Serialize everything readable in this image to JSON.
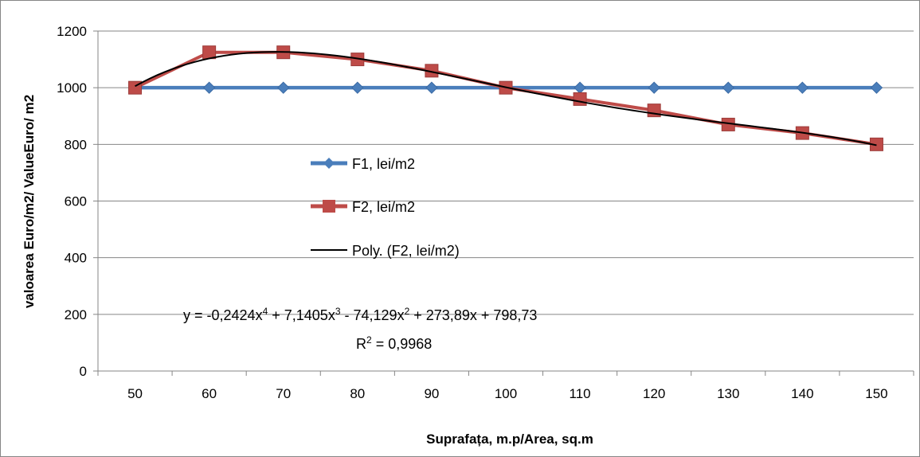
{
  "chart_data": {
    "type": "line",
    "x": [
      50,
      60,
      70,
      80,
      90,
      100,
      110,
      120,
      130,
      140,
      150
    ],
    "series": [
      {
        "name": "F1, lei/m2",
        "values": [
          1000,
          1000,
          1000,
          1000,
          1000,
          1000,
          1000,
          1000,
          1000,
          1000,
          1000
        ],
        "color": "#4a7ebb",
        "marker": "diamond"
      },
      {
        "name": "F2, lei/m2",
        "values": [
          1000,
          1125,
          1125,
          1100,
          1060,
          1000,
          960,
          920,
          870,
          840,
          800
        ],
        "color": "#be4b48",
        "marker": "square"
      }
    ],
    "trendline": {
      "name": "Poly. (F2, lei/m2)",
      "color": "#000000",
      "coefficients": {
        "a4": -0.2424,
        "a3": 7.1405,
        "a2": -74.129,
        "a1": 273.89,
        "a0": 798.73
      },
      "equation": {
        "prefix": "y = -0,2424x",
        "exp1": "4",
        "part2": " + 7,1405x",
        "exp2": "3",
        "part3": " - 74,129x",
        "exp3": "2",
        "part4": " + 273,89x + 798,73"
      },
      "r2": {
        "prefix": "R",
        "exp": "2",
        "suffix": " = 0,9968"
      }
    },
    "xlabel": "Suprafața, m.p/Area, sq.m",
    "ylabel": "valoarea Euro/m2/ ValueEuro/ m2",
    "ylim": [
      0,
      1200
    ],
    "yticks": [
      0,
      200,
      400,
      600,
      800,
      1000,
      1200
    ],
    "xtick_labels": [
      "50",
      "60",
      "70",
      "80",
      "90",
      "100",
      "110",
      "120",
      "130",
      "140",
      "150"
    ],
    "ytick_labels": [
      "0",
      "200",
      "400",
      "600",
      "800",
      "1000",
      "1200"
    ],
    "grid": "horizontal",
    "legend_position": "center-left, inside plot"
  }
}
